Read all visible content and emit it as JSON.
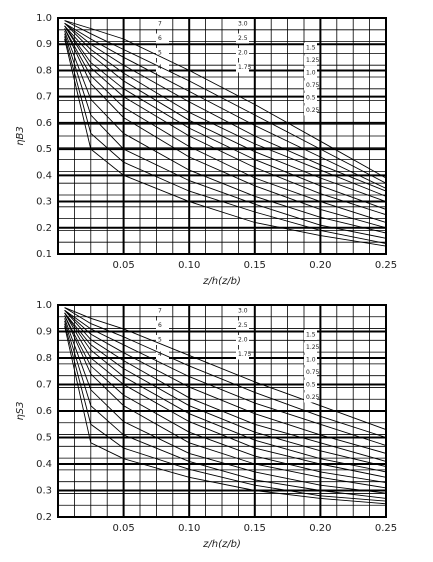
{
  "chart_data": [
    {
      "type": "line",
      "ylabel": "ηB3",
      "xlabel": "z/h(z/b)",
      "x": [
        0.005,
        0.025,
        0.05,
        0.1,
        0.15,
        0.2,
        0.25
      ],
      "xlim": [
        0,
        0.25
      ],
      "ylim": [
        0.1,
        1.0
      ],
      "xticks": [
        {
          "value": 0.05,
          "label": "0.05"
        },
        {
          "value": 0.1,
          "label": "0.10"
        },
        0.15,
        {
          "value": 0.2,
          "label": "0.20"
        },
        0.25
      ],
      "yticks": [
        0.1,
        0.2,
        0.3,
        0.4,
        0.5,
        0.6,
        0.7,
        0.8,
        0.9,
        {
          "value": 1,
          "label": "1.0"
        }
      ],
      "grid": true,
      "color": "#000000",
      "series": [
        {
          "name": "7",
          "values": [
            0.92,
            0.5,
            0.4,
            0.3,
            0.22,
            0.17,
            0.13
          ]
        },
        {
          "name": "6",
          "values": [
            0.93,
            0.56,
            0.45,
            0.34,
            0.26,
            0.19,
            0.14
          ]
        },
        {
          "name": "5",
          "values": [
            0.94,
            0.63,
            0.5,
            0.38,
            0.29,
            0.21,
            0.16
          ]
        },
        {
          "name": "4",
          "values": [
            0.95,
            0.69,
            0.56,
            0.42,
            0.32,
            0.24,
            0.18
          ]
        },
        {
          "name": "3.0",
          "values": [
            0.96,
            0.75,
            0.62,
            0.47,
            0.36,
            0.27,
            0.2
          ]
        },
        {
          "name": "2.5",
          "values": [
            0.96,
            0.78,
            0.66,
            0.51,
            0.39,
            0.3,
            0.22
          ]
        },
        {
          "name": "2.0",
          "values": [
            0.97,
            0.81,
            0.7,
            0.55,
            0.43,
            0.33,
            0.25
          ]
        },
        {
          "name": "1.75",
          "values": [
            0.97,
            0.83,
            0.73,
            0.58,
            0.46,
            0.36,
            0.27
          ]
        },
        {
          "name": "1.5",
          "values": [
            0.97,
            0.86,
            0.76,
            0.61,
            0.49,
            0.39,
            0.3
          ]
        },
        {
          "name": "1.25",
          "values": [
            0.98,
            0.88,
            0.79,
            0.64,
            0.52,
            0.42,
            0.32
          ]
        },
        {
          "name": "1.0",
          "values": [
            0.98,
            0.9,
            0.82,
            0.68,
            0.55,
            0.44,
            0.34
          ]
        },
        {
          "name": "0.75",
          "values": [
            0.98,
            0.92,
            0.85,
            0.72,
            0.59,
            0.47,
            0.35
          ]
        },
        {
          "name": "0.5",
          "values": [
            0.99,
            0.94,
            0.88,
            0.76,
            0.63,
            0.5,
            0.37
          ]
        },
        {
          "name": "0.25",
          "values": [
            0.99,
            0.96,
            0.92,
            0.8,
            0.67,
            0.53,
            0.39
          ]
        }
      ]
    },
    {
      "type": "line",
      "ylabel": "ηS3",
      "xlabel": "z/h(z/b)",
      "x": [
        0.005,
        0.025,
        0.05,
        0.1,
        0.15,
        0.2,
        0.25
      ],
      "xlim": [
        0,
        0.25
      ],
      "ylim": [
        0.2,
        1.0
      ],
      "xticks": [
        {
          "value": 0.05,
          "label": "0.05"
        },
        {
          "value": 0.1,
          "label": "0.10"
        },
        0.15,
        {
          "value": 0.2,
          "label": "0.20"
        },
        0.25
      ],
      "yticks": [
        0.2,
        0.3,
        0.4,
        0.5,
        0.6,
        0.7,
        0.8,
        0.9,
        {
          "value": 1,
          "label": "1.0"
        }
      ],
      "grid": true,
      "color": "#000000",
      "series": [
        {
          "name": "7",
          "values": [
            0.92,
            0.48,
            0.42,
            0.35,
            0.3,
            0.27,
            0.25
          ]
        },
        {
          "name": "6",
          "values": [
            0.93,
            0.55,
            0.46,
            0.38,
            0.32,
            0.28,
            0.26
          ]
        },
        {
          "name": "5",
          "values": [
            0.94,
            0.62,
            0.51,
            0.41,
            0.34,
            0.3,
            0.27
          ]
        },
        {
          "name": "4",
          "values": [
            0.95,
            0.68,
            0.56,
            0.44,
            0.37,
            0.32,
            0.29
          ]
        },
        {
          "name": "3.0",
          "values": [
            0.96,
            0.74,
            0.62,
            0.48,
            0.4,
            0.35,
            0.31
          ]
        },
        {
          "name": "2.5",
          "values": [
            0.96,
            0.77,
            0.66,
            0.52,
            0.43,
            0.37,
            0.33
          ]
        },
        {
          "name": "2.0",
          "values": [
            0.97,
            0.8,
            0.7,
            0.56,
            0.46,
            0.4,
            0.35
          ]
        },
        {
          "name": "1.75",
          "values": [
            0.97,
            0.83,
            0.73,
            0.59,
            0.49,
            0.42,
            0.37
          ]
        },
        {
          "name": "1.5",
          "values": [
            0.97,
            0.85,
            0.76,
            0.62,
            0.52,
            0.45,
            0.39
          ]
        },
        {
          "name": "1.25",
          "values": [
            0.98,
            0.87,
            0.79,
            0.65,
            0.55,
            0.48,
            0.41
          ]
        },
        {
          "name": "1.0",
          "values": [
            0.98,
            0.89,
            0.82,
            0.69,
            0.59,
            0.51,
            0.44
          ]
        },
        {
          "name": "0.75",
          "values": [
            0.98,
            0.91,
            0.85,
            0.73,
            0.63,
            0.55,
            0.47
          ]
        },
        {
          "name": "0.5",
          "values": [
            0.99,
            0.93,
            0.88,
            0.77,
            0.67,
            0.58,
            0.5
          ]
        },
        {
          "name": "0.25",
          "values": [
            0.99,
            0.95,
            0.91,
            0.81,
            0.71,
            0.62,
            0.53
          ]
        }
      ]
    }
  ]
}
